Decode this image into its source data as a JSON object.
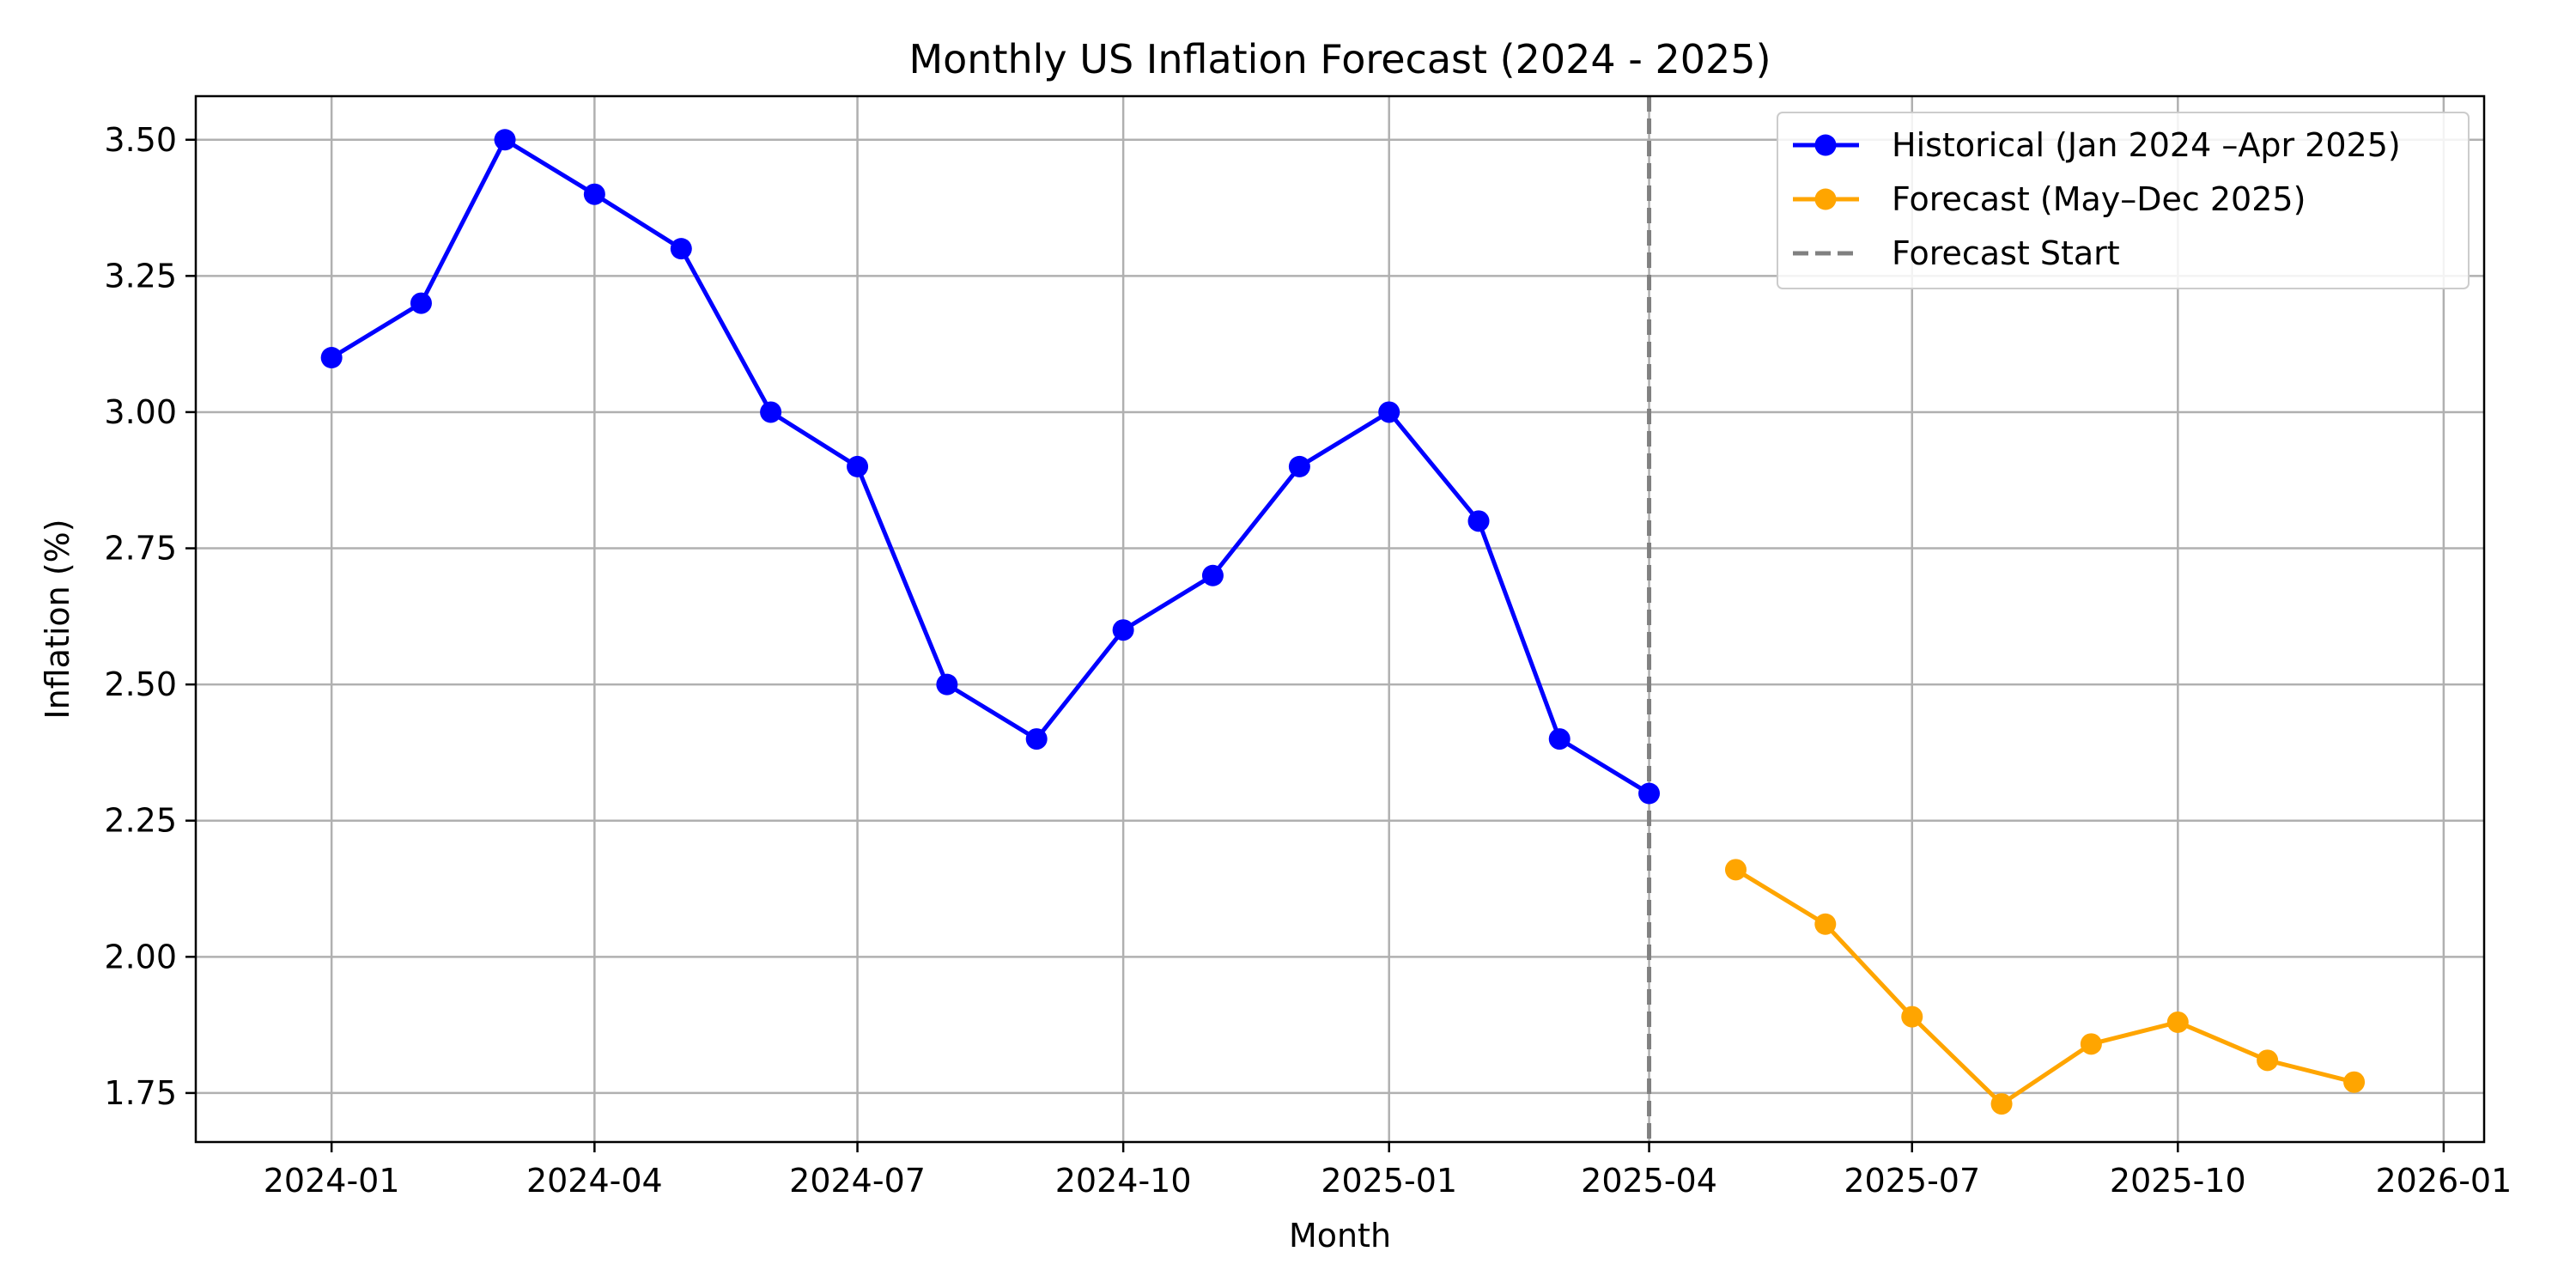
{
  "chart_data": {
    "type": "line",
    "title": "Monthly US Inflation Forecast (2024 - 2025)",
    "xlabel": "Month",
    "ylabel": "Inflation (%)",
    "x_axis_type": "date",
    "xlim": [
      "2023-11-15",
      "2026-01-15"
    ],
    "ylim": [
      1.66,
      3.58
    ],
    "xticks": [
      "2024-01",
      "2024-04",
      "2024-07",
      "2024-10",
      "2025-01",
      "2025-04",
      "2025-07",
      "2025-10",
      "2026-01"
    ],
    "yticks": [
      "1.75",
      "2.00",
      "2.25",
      "2.50",
      "2.75",
      "3.00",
      "3.25",
      "3.50"
    ],
    "grid": true,
    "legend_position": "top-right",
    "series": [
      {
        "name": "Historical (Jan 2024 –Apr 2025)",
        "color": "#0000ff",
        "marker": "circle",
        "x": [
          "2024-01",
          "2024-02",
          "2024-03",
          "2024-04",
          "2024-05",
          "2024-06",
          "2024-07",
          "2024-08",
          "2024-09",
          "2024-10",
          "2024-11",
          "2024-12",
          "2025-01",
          "2025-02",
          "2025-03",
          "2025-04"
        ],
        "y": [
          3.1,
          3.2,
          3.5,
          3.4,
          3.3,
          3.0,
          2.9,
          2.5,
          2.4,
          2.6,
          2.7,
          2.9,
          3.0,
          2.8,
          2.4,
          2.3
        ]
      },
      {
        "name": "Forecast (May–Dec 2025)",
        "color": "#ffa500",
        "marker": "circle",
        "x": [
          "2025-05",
          "2025-06",
          "2025-07",
          "2025-08",
          "2025-09",
          "2025-10",
          "2025-11",
          "2025-12"
        ],
        "y": [
          2.16,
          2.06,
          1.89,
          1.73,
          1.84,
          1.88,
          1.81,
          1.77
        ]
      }
    ],
    "vline": {
      "name": "Forecast Start",
      "x": "2025-04",
      "color": "#808080",
      "style": "dashed"
    }
  }
}
